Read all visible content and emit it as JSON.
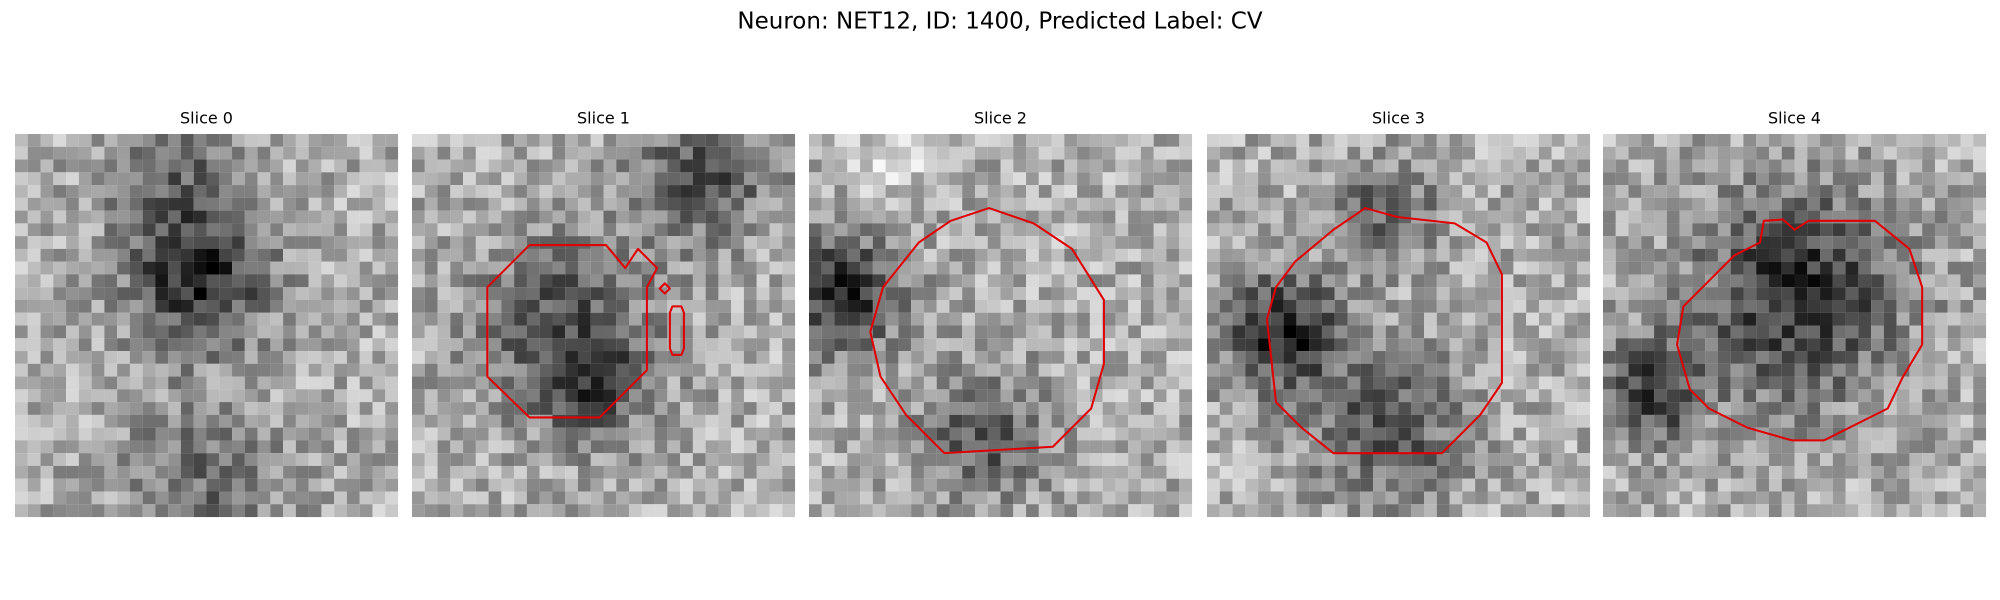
{
  "title": "Neuron: NET12, ID: 1400, Predicted Label: CV",
  "panels": [
    {
      "title": "Slice 0"
    },
    {
      "title": "Slice 1"
    },
    {
      "title": "Slice 2"
    },
    {
      "title": "Slice 3"
    },
    {
      "title": "Slice 4"
    }
  ]
}
